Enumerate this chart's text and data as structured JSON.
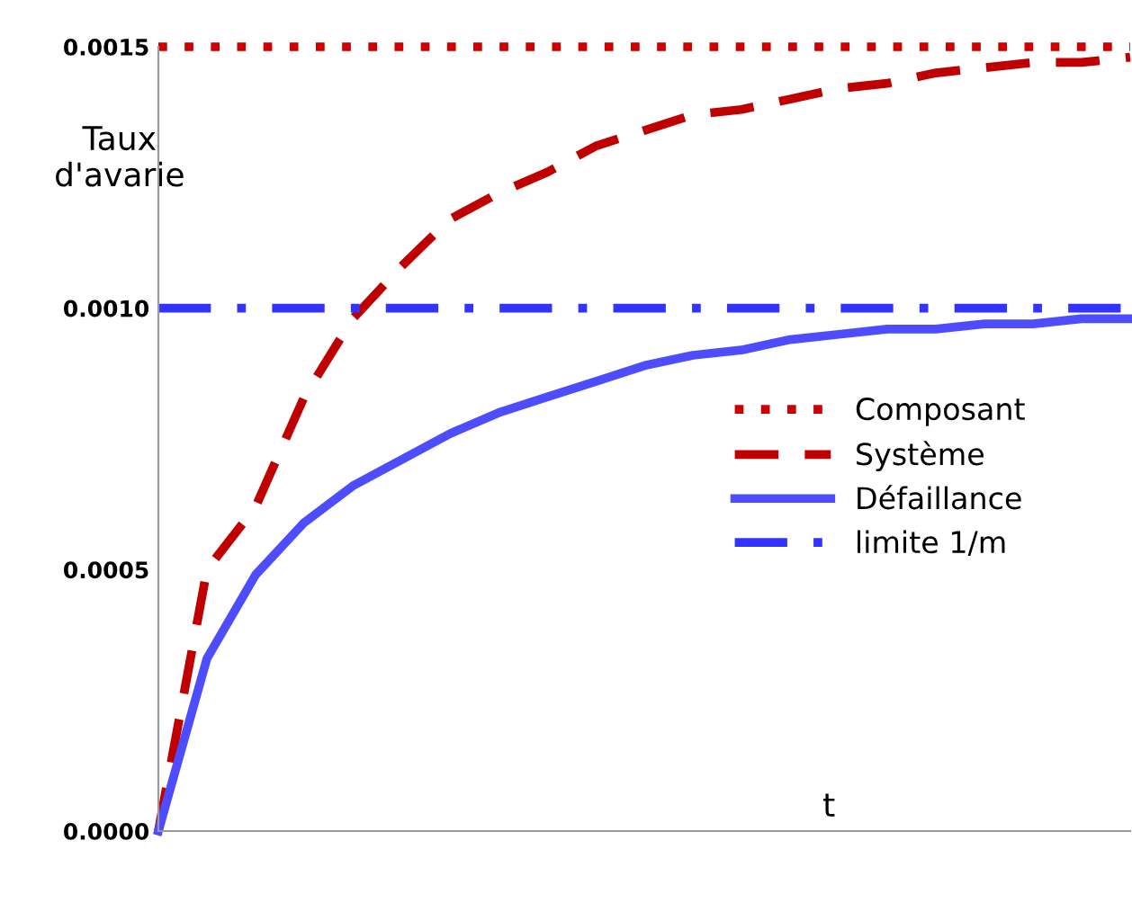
{
  "chart_data": {
    "type": "line",
    "categories": [
      null,
      null,
      null,
      null,
      null,
      null,
      null,
      null,
      null,
      null,
      null,
      null,
      null,
      null,
      null,
      null,
      null,
      null,
      null,
      null,
      null
    ],
    "series": [
      {
        "name": "Composant",
        "color": "#cc0000",
        "line_style": "dotted",
        "values": [
          0.0015,
          0.0015,
          0.0015,
          0.0015,
          0.0015,
          0.0015,
          0.0015,
          0.0015,
          0.0015,
          0.0015,
          0.0015,
          0.0015,
          0.0015,
          0.0015,
          0.0015,
          0.0015,
          0.0015,
          0.0015,
          0.0015,
          0.0015,
          0.0015
        ]
      },
      {
        "name": "Système",
        "color": "#c00000",
        "line_style": "dashed",
        "values": [
          0,
          0.0005,
          0.00062,
          0.00083,
          0.00098,
          0.00108,
          0.00117,
          0.00122,
          0.00126,
          0.00131,
          0.00134,
          0.00137,
          0.00138,
          0.0014,
          0.00142,
          0.00143,
          0.00145,
          0.00146,
          0.00147,
          0.00147,
          0.00148
        ]
      },
      {
        "name": "Défaillance",
        "color": "#4d4dff",
        "line_style": "solid",
        "values": [
          0,
          0.00033,
          0.00049,
          0.00059,
          0.00066,
          0.00071,
          0.00076,
          0.0008,
          0.00083,
          0.00086,
          0.00089,
          0.00091,
          0.00092,
          0.00094,
          0.00095,
          0.00096,
          0.00096,
          0.00097,
          0.00097,
          0.00098,
          0.00098
        ]
      },
      {
        "name": "limite 1/m",
        "color": "#3333ff",
        "line_style": "dashdot",
        "values": [
          0.001,
          0.001,
          0.001,
          0.001,
          0.001,
          0.001,
          0.001,
          0.001,
          0.001,
          0.001,
          0.001,
          0.001,
          0.001,
          0.001,
          0.001,
          0.001,
          0.001,
          0.001,
          0.001,
          0.001,
          0.001
        ]
      }
    ],
    "xlabel": "t",
    "ylabel": "Taux d'avarie",
    "ylim": [
      0,
      0.0015
    ],
    "yticks": [
      {
        "value": 0,
        "label": "0.0000"
      },
      {
        "value": 0.0005,
        "label": "0.0005"
      },
      {
        "value": 0.001,
        "label": "0.0010"
      },
      {
        "value": 0.0015,
        "label": "0.0015"
      }
    ],
    "tick_labels": "y",
    "legend": "right",
    "grid": false
  }
}
